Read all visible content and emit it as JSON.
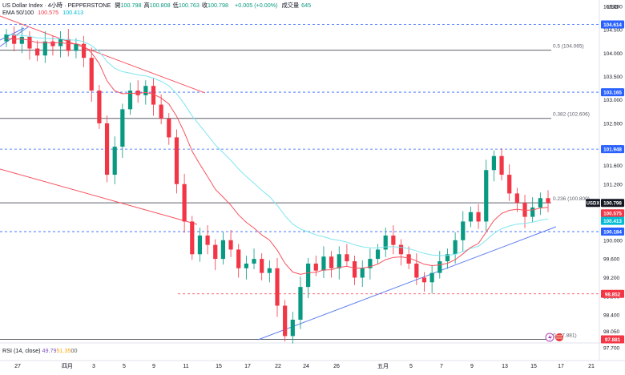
{
  "header": {
    "symbol": "US Dollar Index · 4小時 · PEPPERSTONE",
    "ohlc": [
      {
        "label": "開",
        "value": "100.798",
        "color": "#089981"
      },
      {
        "label": "高",
        "value": "100.808",
        "color": "#089981"
      },
      {
        "label": "低",
        "value": "100.763",
        "color": "#089981"
      },
      {
        "label": "收",
        "value": "100.798",
        "color": "#089981"
      }
    ],
    "change": "+0.005 (+0.00%)",
    "volume_label": "成交量",
    "volume": "645",
    "ema_label": "EMA 50/100",
    "ema50": "100.575",
    "ema100": "100.413",
    "rsi_label": "RSI (14, close)",
    "rsi_values": [
      "49.79",
      "51.35",
      "0",
      "0"
    ]
  },
  "colors": {
    "up": "#089981",
    "down": "#f23645",
    "ema50": "#f7525f",
    "ema100": "#7fe5f0",
    "blue_line": "#5b7cf2",
    "dashed_blue": "#2962ff",
    "dashed_red": "#f23645",
    "fib": "#5d606b",
    "channel": "#f7525f"
  },
  "chart_data": {
    "type": "candlestick",
    "currency": "USD",
    "y_axis_ticks": [
      "105.000",
      "104.500",
      "104.000",
      "103.500",
      "103.000",
      "102.500",
      "102.000",
      "101.600",
      "101.200",
      "100.800",
      "100.000",
      "99.600",
      "99.200",
      "98.800",
      "98.400",
      "98.050",
      "97.700"
    ],
    "ylim": [
      97.5,
      105.0
    ],
    "x_axis_labels": [
      "27",
      "四月",
      "3",
      "5",
      "9",
      "11",
      "15",
      "17",
      "22",
      "24",
      "26",
      "五月",
      "5",
      "7",
      "9",
      "13",
      "15",
      "17",
      "21"
    ],
    "close_prices": [
      104.4,
      104.2,
      104.35,
      104.1,
      103.95,
      104.25,
      104.15,
      104.3,
      104.05,
      104.2,
      103.9,
      103.2,
      102.5,
      101.4,
      102.0,
      102.8,
      103.2,
      103.1,
      103.3,
      102.9,
      102.6,
      102.2,
      101.2,
      100.4,
      99.7,
      100.1,
      99.9,
      99.6,
      100.0,
      99.8,
      99.4,
      99.5,
      99.6,
      99.3,
      99.4,
      98.6,
      97.95,
      98.3,
      99.0,
      99.5,
      99.35,
      99.65,
      99.4,
      99.7,
      99.55,
      99.2,
      99.4,
      99.6,
      99.8,
      100.1,
      99.9,
      99.7,
      99.5,
      99.2,
      99.1,
      99.3,
      99.55,
      99.7,
      100.0,
      100.4,
      100.6,
      100.4,
      101.5,
      101.8,
      101.4,
      101.0,
      100.8,
      100.5,
      100.7,
      100.9,
      100.798
    ],
    "price_levels": [
      {
        "label": "104.614",
        "value": 104.614,
        "style": "dashed",
        "color": "blue"
      },
      {
        "label": "103.165",
        "value": 103.165,
        "style": "dashed",
        "color": "blue"
      },
      {
        "label": "101.948",
        "value": 101.948,
        "style": "dashed",
        "color": "blue"
      },
      {
        "label": "100.184",
        "value": 100.184,
        "style": "dashed",
        "color": "blue"
      },
      {
        "label": "98.852",
        "value": 98.852,
        "style": "dashed",
        "color": "red"
      }
    ],
    "fib_levels": [
      {
        "label": "0.5 (104.065)",
        "value": 104.065
      },
      {
        "label": "0.382 (102.606)",
        "value": 102.606
      },
      {
        "label": "0.236 (100.800)",
        "value": 100.8
      },
      {
        "label": "0 (97.881)",
        "value": 97.881
      }
    ],
    "axis_tags": [
      {
        "label": "104.614",
        "value": 104.614,
        "color": "#2962ff"
      },
      {
        "label": "103.165",
        "value": 103.165,
        "color": "#2962ff"
      },
      {
        "label": "101.948",
        "value": 101.948,
        "color": "#2962ff"
      },
      {
        "label": "USDX 100.798",
        "value": 100.798,
        "color": "#131722"
      },
      {
        "label": "100.575",
        "value": 100.575,
        "color": "#f23645"
      },
      {
        "label": "100.413",
        "value": 100.413,
        "color": "#00bcd4"
      },
      {
        "label": "100.184",
        "value": 100.184,
        "color": "#2962ff"
      },
      {
        "label": "98.852",
        "value": 98.852,
        "color": "#f23645"
      },
      {
        "label": "97.881",
        "value": 97.881,
        "color": "#f23645"
      }
    ]
  }
}
